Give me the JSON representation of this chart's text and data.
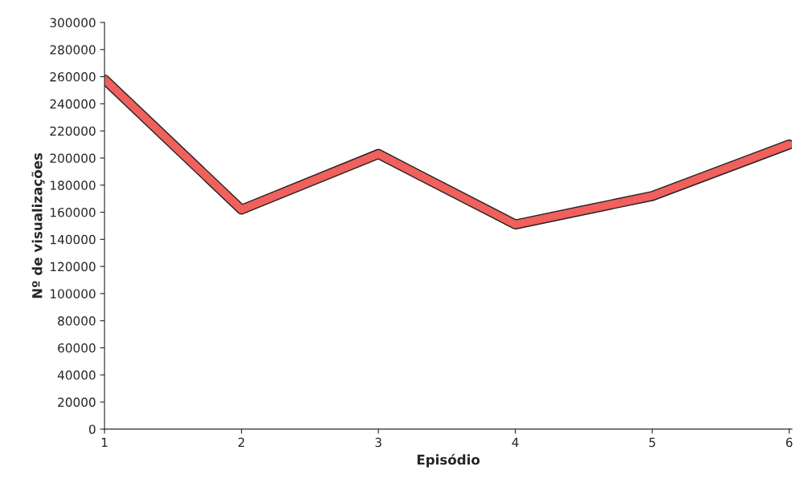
{
  "chart_data": {
    "type": "line",
    "xlabel": "Episódio",
    "ylabel": "Nº de visualizações",
    "categories": [
      "1",
      "2",
      "3",
      "4",
      "5",
      "6"
    ],
    "series": [
      {
        "color": "#f0605c",
        "values": [
          258000,
          162000,
          203000,
          151000,
          172000,
          210000
        ]
      }
    ],
    "ylim": [
      0,
      300000
    ],
    "yticks": [
      0,
      20000,
      40000,
      60000,
      80000,
      100000,
      120000,
      140000,
      160000,
      180000,
      200000,
      220000,
      240000,
      260000,
      280000,
      300000
    ],
    "grid": false,
    "marker": "none",
    "line_style": "solid"
  }
}
